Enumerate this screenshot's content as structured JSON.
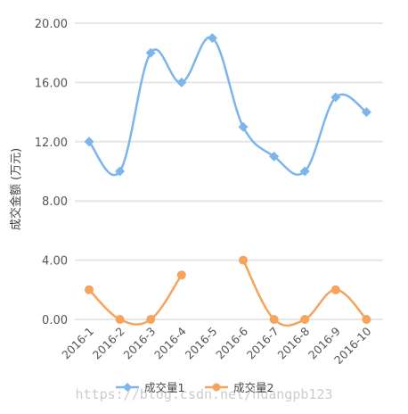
{
  "chart_data": {
    "type": "line",
    "categories": [
      "2016-1",
      "2016-2",
      "2016-3",
      "2016-4",
      "2016-5",
      "2016-6",
      "2016-7",
      "2016-8",
      "2016-9",
      "2016-10"
    ],
    "ylabel": "成交金额 (万元)",
    "ylim": [
      0,
      20
    ],
    "yticks": [
      "0.00",
      "4.00",
      "8.00",
      "12.00",
      "16.00",
      "20.00"
    ],
    "grid": true,
    "legend_position": "bottom",
    "series": [
      {
        "name": "成交量1",
        "color": "#7cb5ec",
        "marker": "diamond",
        "values": [
          12,
          10,
          18,
          16,
          19,
          13,
          11,
          10,
          15,
          14
        ]
      },
      {
        "name": "成交量2",
        "color": "#f7a35c",
        "marker": "circle",
        "values": [
          2,
          0,
          0,
          3,
          null,
          4,
          0,
          0,
          2,
          0
        ]
      }
    ]
  },
  "watermark": "https://blog.csdn.net/huangpb123"
}
